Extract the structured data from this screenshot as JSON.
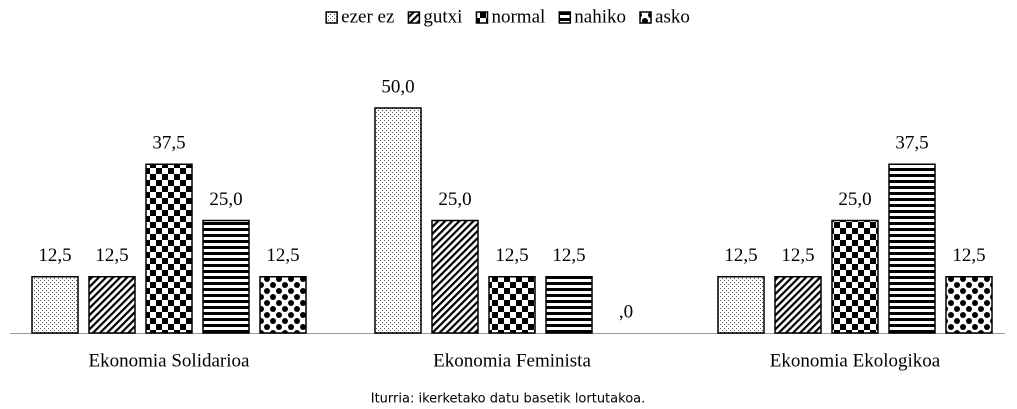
{
  "chart_data": {
    "type": "bar",
    "categories": [
      "Ekonomia Solidarioa",
      "Ekonomia Feminista",
      "Ekonomia Ekologikoa"
    ],
    "series": [
      {
        "name": "ezer ez",
        "color": "#000000",
        "values": [
          12.5,
          50,
          12.5
        ],
        "value_labels": [
          "12,5",
          "50,0",
          "12,5"
        ]
      },
      {
        "name": "gutxi",
        "color": "#000000",
        "values": [
          12.5,
          25,
          12.5
        ],
        "value_labels": [
          "12,5",
          "25,0",
          "12,5"
        ]
      },
      {
        "name": "normal",
        "color": "#000000",
        "values": [
          37.5,
          12.5,
          25
        ],
        "value_labels": [
          "37,5",
          "12,5",
          "25,0"
        ]
      },
      {
        "name": "nahiko",
        "color": "#000000",
        "values": [
          25,
          12.5,
          37.5
        ],
        "value_labels": [
          "25,0",
          "12,5",
          "37,5"
        ]
      },
      {
        "name": "asko",
        "color": "#000000",
        "values": [
          12.5,
          0,
          12.5
        ],
        "value_labels": [
          "12,5",
          ",0",
          "12,5"
        ]
      }
    ],
    "ylim": [
      0,
      50
    ],
    "legend": "top",
    "source": "Iturria: ikerketako datu basetik lortutakoa."
  }
}
